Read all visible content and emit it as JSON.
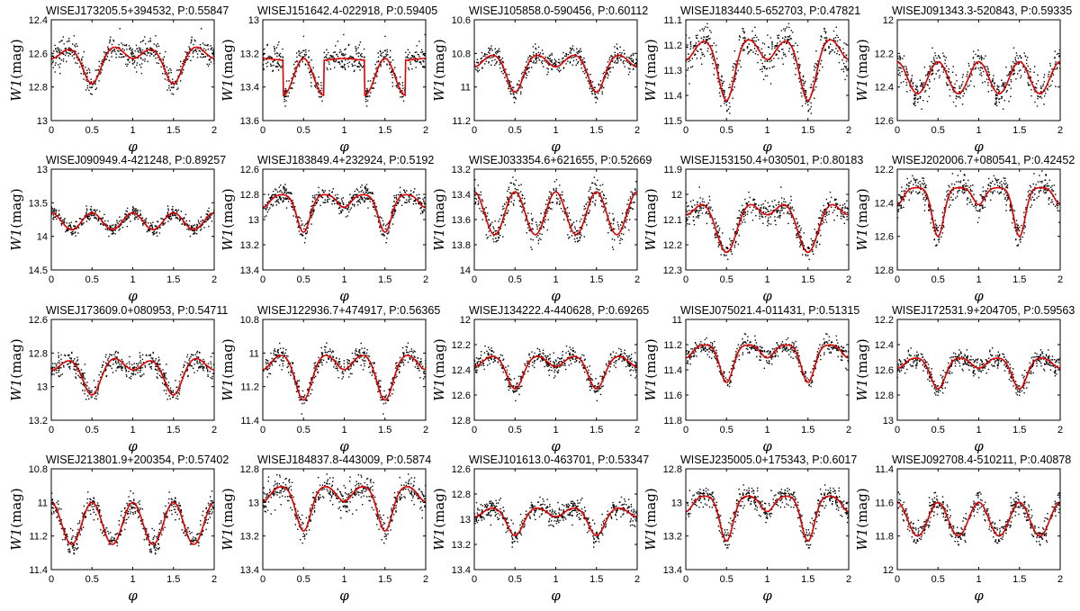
{
  "chart_data": [
    {
      "type": "scatter",
      "title": "WISEJ173205.5+394532, P:0.55847",
      "xlabel": "φ",
      "ylabel_main": "W1",
      "ylabel_unit": "(mag)",
      "xlim": [
        0,
        2
      ],
      "ylim": [
        12.4,
        13.0
      ],
      "y_reversed": true,
      "yticks": [
        "12.4",
        "12.6",
        "12.8",
        "13"
      ],
      "xticks": [
        "0",
        "0.5",
        "1",
        "1.5",
        "2"
      ],
      "model": {
        "max": 12.55,
        "min1": 12.78,
        "min2": 12.78,
        "width": 0.11,
        "shape": "ea",
        "oce": 0.1
      },
      "noise": 0.035,
      "series": [
        {
          "name": "",
          "style": "black dots"
        },
        {
          "name": "",
          "style": "red line"
        }
      ]
    },
    {
      "type": "scatter",
      "title": "WISEJ151642.4-022918, P:0.59405",
      "xlabel": "φ",
      "ylabel_main": "W1",
      "ylabel_unit": "(mag)",
      "xlim": [
        0,
        2
      ],
      "ylim": [
        13.0,
        13.6
      ],
      "y_reversed": true,
      "yticks": [
        "13",
        "13.2",
        "13.4",
        "13.6"
      ],
      "xticks": [
        "0",
        "0.5",
        "1",
        "1.5",
        "2"
      ],
      "model": {
        "max": 13.23,
        "min1": 13.45,
        "min2": 13.24,
        "width": 0.13,
        "shape": "ew",
        "oce": 0
      },
      "noise": 0.04
    },
    {
      "type": "scatter",
      "title": "WISEJ105858.0-590456, P:0.60112",
      "xlabel": "φ",
      "ylabel_main": "W1",
      "ylabel_unit": "(mag)",
      "xlim": [
        0,
        2
      ],
      "ylim": [
        10.6,
        11.2
      ],
      "y_reversed": true,
      "yticks": [
        "10.6",
        "10.8",
        "11",
        "11.2"
      ],
      "xticks": [
        "0",
        "0.5",
        "1",
        "1.5",
        "2"
      ],
      "model": {
        "max": 10.8,
        "min1": 11.03,
        "min2": 11.03,
        "width": 0.1,
        "shape": "ea",
        "oce": 0
      },
      "noise": 0.03
    },
    {
      "type": "scatter",
      "title": "WISEJ183440.5-652703, P:0.47821",
      "xlabel": "φ",
      "ylabel_main": "W1",
      "ylabel_unit": "(mag)",
      "xlim": [
        0,
        2
      ],
      "ylim": [
        11.1,
        11.5
      ],
      "y_reversed": true,
      "yticks": [
        "11.1",
        "11.2",
        "11.3",
        "11.4",
        "11.5"
      ],
      "xticks": [
        "0",
        "0.5",
        "1",
        "1.5",
        "2"
      ],
      "model": {
        "max": 11.17,
        "min1": 11.42,
        "min2": 11.42,
        "width": 0.1,
        "shape": "ea",
        "oce": 0.04
      },
      "noise": 0.04
    },
    {
      "type": "scatter",
      "title": "WISEJ091343.3-520843, P:0.59335",
      "xlabel": "φ",
      "ylabel_main": "W1",
      "ylabel_unit": "(mag)",
      "xlim": [
        0,
        2
      ],
      "ylim": [
        12.0,
        12.6
      ],
      "y_reversed": true,
      "yticks": [
        "12",
        "12.2",
        "12.4",
        "12.6"
      ],
      "xticks": [
        "0",
        "0.5",
        "1",
        "1.5",
        "2"
      ],
      "model": {
        "max": 12.25,
        "min1": 12.44,
        "min2": 12.44,
        "width": 0.2,
        "shape": "ew",
        "oce": 0
      },
      "noise": 0.04
    },
    {
      "type": "scatter",
      "title": "WISEJ090949.4-421248, P:0.89257",
      "xlabel": "φ",
      "ylabel_main": "W1",
      "ylabel_unit": "(mag)",
      "xlim": [
        0,
        2
      ],
      "ylim": [
        13.0,
        14.5
      ],
      "y_reversed": true,
      "yticks": [
        "13",
        "13.5",
        "14",
        "14.5"
      ],
      "xticks": [
        "0",
        "0.5",
        "1",
        "1.5",
        "2"
      ],
      "model": {
        "max": 13.65,
        "min1": 13.9,
        "min2": 13.9,
        "width": 0.2,
        "shape": "ew",
        "oce": 0
      },
      "noise": 0.05
    },
    {
      "type": "scatter",
      "title": "WISEJ183849.4+232924, P:0.5192",
      "xlabel": "φ",
      "ylabel_main": "W1",
      "ylabel_unit": "(mag)",
      "xlim": [
        0,
        2
      ],
      "ylim": [
        12.6,
        13.4
      ],
      "y_reversed": true,
      "yticks": [
        "12.6",
        "12.8",
        "13",
        "13.2",
        "13.4"
      ],
      "xticks": [
        "0",
        "0.5",
        "1",
        "1.5",
        "2"
      ],
      "model": {
        "max": 12.8,
        "min1": 13.1,
        "min2": 13.1,
        "width": 0.08,
        "shape": "ea",
        "oce": 0
      },
      "noise": 0.04
    },
    {
      "type": "scatter",
      "title": "WISEJ033354.6+621655, P:0.52669",
      "xlabel": "φ",
      "ylabel_main": "W1",
      "ylabel_unit": "(mag)",
      "xlim": [
        0,
        2
      ],
      "ylim": [
        13.2,
        14.0
      ],
      "y_reversed": true,
      "yticks": [
        "13.2",
        "13.4",
        "13.6",
        "13.8",
        "14"
      ],
      "xticks": [
        "0",
        "0.5",
        "1",
        "1.5",
        "2"
      ],
      "model": {
        "max": 13.38,
        "min1": 13.72,
        "min2": 13.72,
        "width": 0.15,
        "shape": "ew",
        "oce": 0
      },
      "noise": 0.06
    },
    {
      "type": "scatter",
      "title": "WISEJ153150.4+030501, P:0.80183",
      "xlabel": "φ",
      "ylabel_main": "W1",
      "ylabel_unit": "(mag)",
      "xlim": [
        0,
        2
      ],
      "ylim": [
        11.9,
        12.3
      ],
      "y_reversed": true,
      "yticks": [
        "11.9",
        "12",
        "12.1",
        "12.2",
        "12.3"
      ],
      "xticks": [
        "0",
        "0.5",
        "1",
        "1.5",
        "2"
      ],
      "model": {
        "max": 12.0,
        "min1": 12.23,
        "min2": 12.23,
        "width": 0.13,
        "shape": "ea",
        "oce": 0
      },
      "noise": 0.025
    },
    {
      "type": "scatter",
      "title": "WISEJ202006.7+080541, P:0.42452",
      "xlabel": "φ",
      "ylabel_main": "W1",
      "ylabel_unit": "(mag)",
      "xlim": [
        0,
        2
      ],
      "ylim": [
        12.2,
        12.8
      ],
      "y_reversed": true,
      "yticks": [
        "12.2",
        "12.4",
        "12.6",
        "12.8"
      ],
      "xticks": [
        "0",
        "0.5",
        "1",
        "1.5",
        "2"
      ],
      "model": {
        "max": 12.31,
        "min1": 12.6,
        "min2": 12.6,
        "width": 0.07,
        "shape": "ea",
        "oce": 0
      },
      "noise": 0.04
    },
    {
      "type": "scatter",
      "title": "WISEJ173609.0+080953, P:0.54711",
      "xlabel": "φ",
      "ylabel_main": "W1",
      "ylabel_unit": "(mag)",
      "xlim": [
        0,
        2
      ],
      "ylim": [
        12.6,
        13.2
      ],
      "y_reversed": true,
      "yticks": [
        "12.6",
        "12.8",
        "13",
        "13.2"
      ],
      "xticks": [
        "0",
        "0.5",
        "1",
        "1.5",
        "2"
      ],
      "model": {
        "max": 12.82,
        "min1": 13.05,
        "min2": 13.05,
        "width": 0.11,
        "shape": "ea",
        "oce": 0.1
      },
      "noise": 0.035
    },
    {
      "type": "scatter",
      "title": "WISEJ122936.7+474917, P:0.56365",
      "xlabel": "φ",
      "ylabel_main": "W1",
      "ylabel_unit": "(mag)",
      "xlim": [
        0,
        2
      ],
      "ylim": [
        10.8,
        11.4
      ],
      "y_reversed": true,
      "yticks": [
        "10.8",
        "11",
        "11.2",
        "11.4"
      ],
      "xticks": [
        "0",
        "0.5",
        "1",
        "1.5",
        "2"
      ],
      "model": {
        "max": 11.0,
        "min1": 11.28,
        "min2": 11.28,
        "width": 0.1,
        "shape": "ea",
        "oce": 0
      },
      "noise": 0.03
    },
    {
      "type": "scatter",
      "title": "WISEJ134222.4-440628, P:0.69265",
      "xlabel": "φ",
      "ylabel_main": "W1",
      "ylabel_unit": "(mag)",
      "xlim": [
        0,
        2
      ],
      "ylim": [
        12.0,
        12.8
      ],
      "y_reversed": true,
      "yticks": [
        "12",
        "12.2",
        "12.4",
        "12.6",
        "12.8"
      ],
      "xticks": [
        "0",
        "0.5",
        "1",
        "1.5",
        "2"
      ],
      "model": {
        "max": 12.28,
        "min1": 12.55,
        "min2": 12.55,
        "width": 0.1,
        "shape": "ea",
        "oce": 0
      },
      "noise": 0.04
    },
    {
      "type": "scatter",
      "title": "WISEJ075021.4-011431, P:0.51315",
      "xlabel": "φ",
      "ylabel_main": "W1",
      "ylabel_unit": "(mag)",
      "xlim": [
        0,
        2
      ],
      "ylim": [
        11.0,
        11.8
      ],
      "y_reversed": true,
      "yticks": [
        "11",
        "11.2",
        "11.4",
        "11.6",
        "11.8"
      ],
      "xticks": [
        "0",
        "0.5",
        "1",
        "1.5",
        "2"
      ],
      "model": {
        "max": 11.2,
        "min1": 11.5,
        "min2": 11.5,
        "width": 0.08,
        "shape": "ea",
        "oce": 0
      },
      "noise": 0.035
    },
    {
      "type": "scatter",
      "title": "WISEJ172531.9+204705, P:0.59563",
      "xlabel": "φ",
      "ylabel_main": "W1",
      "ylabel_unit": "(mag)",
      "xlim": [
        0,
        2
      ],
      "ylim": [
        12.2,
        13.0
      ],
      "y_reversed": true,
      "yticks": [
        "12.2",
        "12.4",
        "12.6",
        "12.8",
        "13"
      ],
      "xticks": [
        "0",
        "0.5",
        "1",
        "1.5",
        "2"
      ],
      "model": {
        "max": 12.5,
        "min1": 12.75,
        "min2": 12.75,
        "width": 0.09,
        "shape": "ea",
        "oce": 0
      },
      "noise": 0.04
    },
    {
      "type": "scatter",
      "title": "WISEJ213801.9+200354, P:0.57402",
      "xlabel": "φ",
      "ylabel_main": "W1",
      "ylabel_unit": "(mag)",
      "xlim": [
        0,
        2
      ],
      "ylim": [
        10.8,
        11.4
      ],
      "y_reversed": true,
      "yticks": [
        "10.8",
        "11",
        "11.2",
        "11.4"
      ],
      "xticks": [
        "0",
        "0.5",
        "1",
        "1.5",
        "2"
      ],
      "model": {
        "max": 11.0,
        "min1": 11.25,
        "min2": 11.25,
        "width": 0.14,
        "shape": "ew",
        "oce": 0
      },
      "noise": 0.035
    },
    {
      "type": "scatter",
      "title": "WISEJ184837.8-443009, P:0.5874",
      "xlabel": "φ",
      "ylabel_main": "W1",
      "ylabel_unit": "(mag)",
      "xlim": [
        0,
        2
      ],
      "ylim": [
        12.8,
        13.4
      ],
      "y_reversed": true,
      "yticks": [
        "12.8",
        "13",
        "13.2",
        "13.4"
      ],
      "xticks": [
        "0",
        "0.5",
        "1",
        "1.5",
        "2"
      ],
      "model": {
        "max": 12.9,
        "min1": 13.17,
        "min2": 13.17,
        "width": 0.09,
        "shape": "ea",
        "oce": 0
      },
      "noise": 0.04
    },
    {
      "type": "scatter",
      "title": "WISEJ101613.0-463701, P:0.53347",
      "xlabel": "φ",
      "ylabel_main": "W1",
      "ylabel_unit": "(mag)",
      "xlim": [
        0,
        2
      ],
      "ylim": [
        12.6,
        13.4
      ],
      "y_reversed": true,
      "yticks": [
        "12.6",
        "12.8",
        "13",
        "13.2",
        "13.4"
      ],
      "xticks": [
        "0",
        "0.5",
        "1",
        "1.5",
        "2"
      ],
      "model": {
        "max": 12.9,
        "min1": 13.13,
        "min2": 13.13,
        "width": 0.1,
        "shape": "ea",
        "oce": 0
      },
      "noise": 0.04
    },
    {
      "type": "scatter",
      "title": "WISEJ235005.0+175343, P:0.6017",
      "xlabel": "φ",
      "ylabel_main": "W1",
      "ylabel_unit": "(mag)",
      "xlim": [
        0,
        2
      ],
      "ylim": [
        12.8,
        13.4
      ],
      "y_reversed": true,
      "yticks": [
        "12.8",
        "13",
        "13.2",
        "13.4"
      ],
      "xticks": [
        "0",
        "0.5",
        "1",
        "1.5",
        "2"
      ],
      "model": {
        "max": 12.96,
        "min1": 13.23,
        "min2": 13.23,
        "width": 0.08,
        "shape": "ea",
        "oce": 0
      },
      "noise": 0.035
    },
    {
      "type": "scatter",
      "title": "WISEJ092708.4-510211, P:0.40878",
      "xlabel": "φ",
      "ylabel_main": "W1",
      "ylabel_unit": "(mag)",
      "xlim": [
        0,
        2
      ],
      "ylim": [
        11.4,
        12.0
      ],
      "y_reversed": true,
      "yticks": [
        "11.4",
        "11.6",
        "11.8",
        "12"
      ],
      "xticks": [
        "0",
        "0.5",
        "1",
        "1.5",
        "2"
      ],
      "model": {
        "max": 11.6,
        "min1": 11.8,
        "min2": 11.8,
        "width": 0.2,
        "shape": "ew",
        "oce": 0
      },
      "noise": 0.035
    }
  ],
  "colors": {
    "points": "#000000",
    "model_line": "#e00000"
  }
}
